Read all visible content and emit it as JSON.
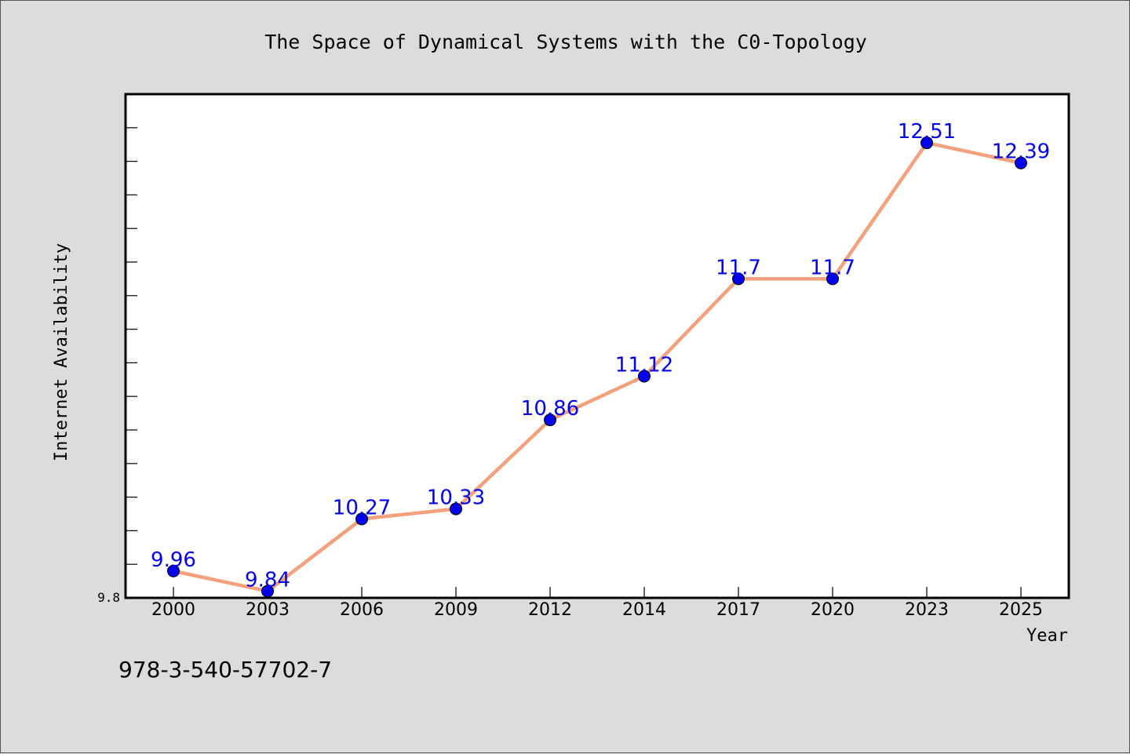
{
  "chart_data": {
    "type": "line",
    "title": "The Space of Dynamical Systems with the C0-Topology",
    "xlabel": "Year",
    "ylabel": "Internet Availability",
    "categories": [
      "2000",
      "2003",
      "2006",
      "2009",
      "2012",
      "2014",
      "2017",
      "2020",
      "2023",
      "2025"
    ],
    "series": [
      {
        "values": [
          9.96,
          9.84,
          10.27,
          10.33,
          10.86,
          11.12,
          11.7,
          11.7,
          12.51,
          12.39
        ],
        "labels": [
          "9.96",
          "9.84",
          "10.27",
          "10.33",
          "10.86",
          "11.12",
          "11.7",
          "11.7",
          "12.51",
          "12.39"
        ],
        "line_color": "#f4a07c",
        "marker_color": "#0000ee",
        "label_color": "#0000ee"
      }
    ],
    "y_tick_label": "9.8",
    "ylim": [
      9.8,
      12.8
    ],
    "grid": false,
    "legend": "none"
  },
  "footer_text": "978-3-540-57702-7"
}
